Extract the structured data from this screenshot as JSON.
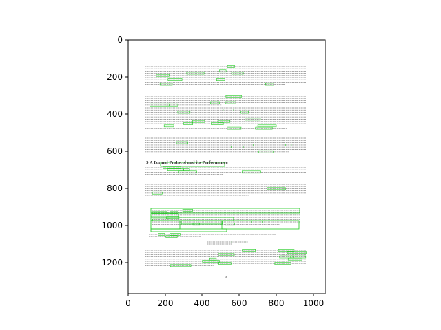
{
  "axes": {
    "x_ticks": [
      "0",
      "200",
      "400",
      "600",
      "800",
      "1000"
    ],
    "y_ticks": [
      "0",
      "200",
      "400",
      "600",
      "800",
      "1000",
      "1200"
    ]
  },
  "page": {
    "section_heading": "5   A Formal Protocol and its Performance",
    "page_number": "4"
  },
  "colors": {
    "box": "#19c819",
    "text_line": "#9a9a9a",
    "axis": "#000000"
  }
}
